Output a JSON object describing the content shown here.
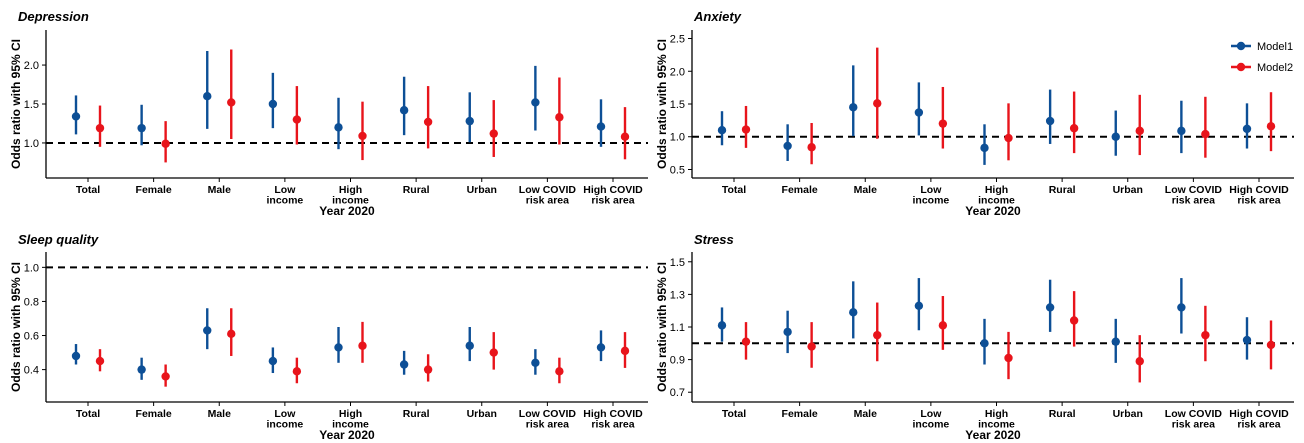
{
  "colors": {
    "model1": "#0d4f96",
    "model2": "#e8141b",
    "axis": "#000000"
  },
  "categories": [
    [
      "Total"
    ],
    [
      "Female"
    ],
    [
      "Male"
    ],
    [
      "Low",
      "income"
    ],
    [
      "High",
      "income"
    ],
    [
      "Rural"
    ],
    [
      "Urban"
    ],
    [
      "Low COVID",
      "risk area"
    ],
    [
      "High COVID",
      "risk area"
    ]
  ],
  "chart_data": [
    {
      "type": "scatter",
      "title": "Depression",
      "xlabel": "Year 2020",
      "ylabel": "Odds ratio with 95% CI",
      "ylim": [
        0.55,
        2.45
      ],
      "yticks": [
        1.0,
        1.5,
        2.0
      ],
      "ytick_labels": [
        "1.0",
        "1.5",
        "2.0"
      ],
      "reference_line": 1.0,
      "legend": false,
      "series": [
        {
          "name": "Model1",
          "values": [
            1.34,
            1.19,
            1.6,
            1.5,
            1.2,
            1.42,
            1.28,
            1.52,
            1.21
          ],
          "lower": [
            1.11,
            0.97,
            1.18,
            1.19,
            0.92,
            1.1,
            1.01,
            1.16,
            0.95
          ],
          "upper": [
            1.61,
            1.49,
            2.18,
            1.9,
            1.58,
            1.85,
            1.65,
            1.99,
            1.56
          ]
        },
        {
          "name": "Model2",
          "values": [
            1.19,
            0.99,
            1.52,
            1.3,
            1.09,
            1.27,
            1.12,
            1.33,
            1.08
          ],
          "lower": [
            0.95,
            0.75,
            1.05,
            0.98,
            0.78,
            0.93,
            0.82,
            0.98,
            0.79
          ],
          "upper": [
            1.48,
            1.28,
            2.2,
            1.73,
            1.53,
            1.73,
            1.55,
            1.84,
            1.46
          ]
        }
      ]
    },
    {
      "type": "scatter",
      "title": "Anxiety",
      "xlabel": "Year 2020",
      "ylabel": "Odds ratio with 95% CI",
      "ylim": [
        0.37,
        2.63
      ],
      "yticks": [
        0.5,
        1.0,
        1.5,
        2.0,
        2.5
      ],
      "ytick_labels": [
        "0.5",
        "1.0",
        "1.5",
        "2.0",
        "2.5"
      ],
      "reference_line": 1.0,
      "legend": true,
      "legend_position": "top-right",
      "series": [
        {
          "name": "Model1",
          "values": [
            1.1,
            0.86,
            1.45,
            1.37,
            0.83,
            1.24,
            1.0,
            1.09,
            1.12
          ],
          "lower": [
            0.87,
            0.63,
            1.01,
            1.02,
            0.57,
            0.89,
            0.71,
            0.75,
            0.82
          ],
          "upper": [
            1.39,
            1.19,
            2.09,
            1.83,
            1.19,
            1.72,
            1.4,
            1.55,
            1.51
          ]
        },
        {
          "name": "Model2",
          "values": [
            1.11,
            0.84,
            1.51,
            1.2,
            0.98,
            1.13,
            1.09,
            1.04,
            1.16
          ],
          "lower": [
            0.83,
            0.58,
            0.97,
            0.82,
            0.64,
            0.75,
            0.72,
            0.68,
            0.78
          ],
          "upper": [
            1.47,
            1.21,
            2.36,
            1.76,
            1.51,
            1.69,
            1.64,
            1.61,
            1.68
          ]
        }
      ]
    },
    {
      "type": "scatter",
      "title": "Sleep quality",
      "xlabel": "Year 2020",
      "ylabel": "Odds ratio with 95% CI",
      "ylim": [
        0.21,
        1.09
      ],
      "yticks": [
        0.4,
        0.6,
        0.8,
        1.0
      ],
      "ytick_labels": [
        "0.4",
        "0.6",
        "0.8",
        "1.0"
      ],
      "reference_line": 1.0,
      "legend": false,
      "series": [
        {
          "name": "Model1",
          "values": [
            0.48,
            0.4,
            0.63,
            0.45,
            0.53,
            0.43,
            0.54,
            0.44,
            0.53
          ],
          "lower": [
            0.43,
            0.34,
            0.52,
            0.38,
            0.44,
            0.37,
            0.45,
            0.37,
            0.45
          ],
          "upper": [
            0.55,
            0.47,
            0.76,
            0.53,
            0.65,
            0.51,
            0.65,
            0.52,
            0.63
          ]
        },
        {
          "name": "Model2",
          "values": [
            0.45,
            0.36,
            0.61,
            0.39,
            0.54,
            0.4,
            0.5,
            0.39,
            0.51
          ],
          "lower": [
            0.39,
            0.3,
            0.48,
            0.32,
            0.44,
            0.33,
            0.4,
            0.32,
            0.41
          ],
          "upper": [
            0.52,
            0.43,
            0.76,
            0.47,
            0.68,
            0.49,
            0.62,
            0.47,
            0.62
          ]
        }
      ]
    },
    {
      "type": "scatter",
      "title": "Stress",
      "xlabel": "Year 2020",
      "ylabel": "Odds ratio with 95% CI",
      "ylim": [
        0.64,
        1.56
      ],
      "yticks": [
        0.7,
        0.9,
        1.1,
        1.3,
        1.5
      ],
      "ytick_labels": [
        "0.7",
        "0.9",
        "1.1",
        "1.3",
        "1.5"
      ],
      "reference_line": 1.0,
      "legend": false,
      "series": [
        {
          "name": "Model1",
          "values": [
            1.11,
            1.07,
            1.19,
            1.23,
            1.0,
            1.22,
            1.01,
            1.22,
            1.02
          ],
          "lower": [
            1.01,
            0.94,
            1.03,
            1.08,
            0.87,
            1.07,
            0.88,
            1.06,
            0.9
          ],
          "upper": [
            1.22,
            1.2,
            1.38,
            1.4,
            1.15,
            1.39,
            1.15,
            1.4,
            1.16
          ]
        },
        {
          "name": "Model2",
          "values": [
            1.01,
            0.98,
            1.05,
            1.11,
            0.91,
            1.14,
            0.89,
            1.05,
            0.99
          ],
          "lower": [
            0.9,
            0.85,
            0.89,
            0.96,
            0.78,
            0.98,
            0.76,
            0.89,
            0.84
          ],
          "upper": [
            1.13,
            1.13,
            1.25,
            1.29,
            1.07,
            1.32,
            1.05,
            1.23,
            1.14
          ]
        }
      ]
    }
  ]
}
